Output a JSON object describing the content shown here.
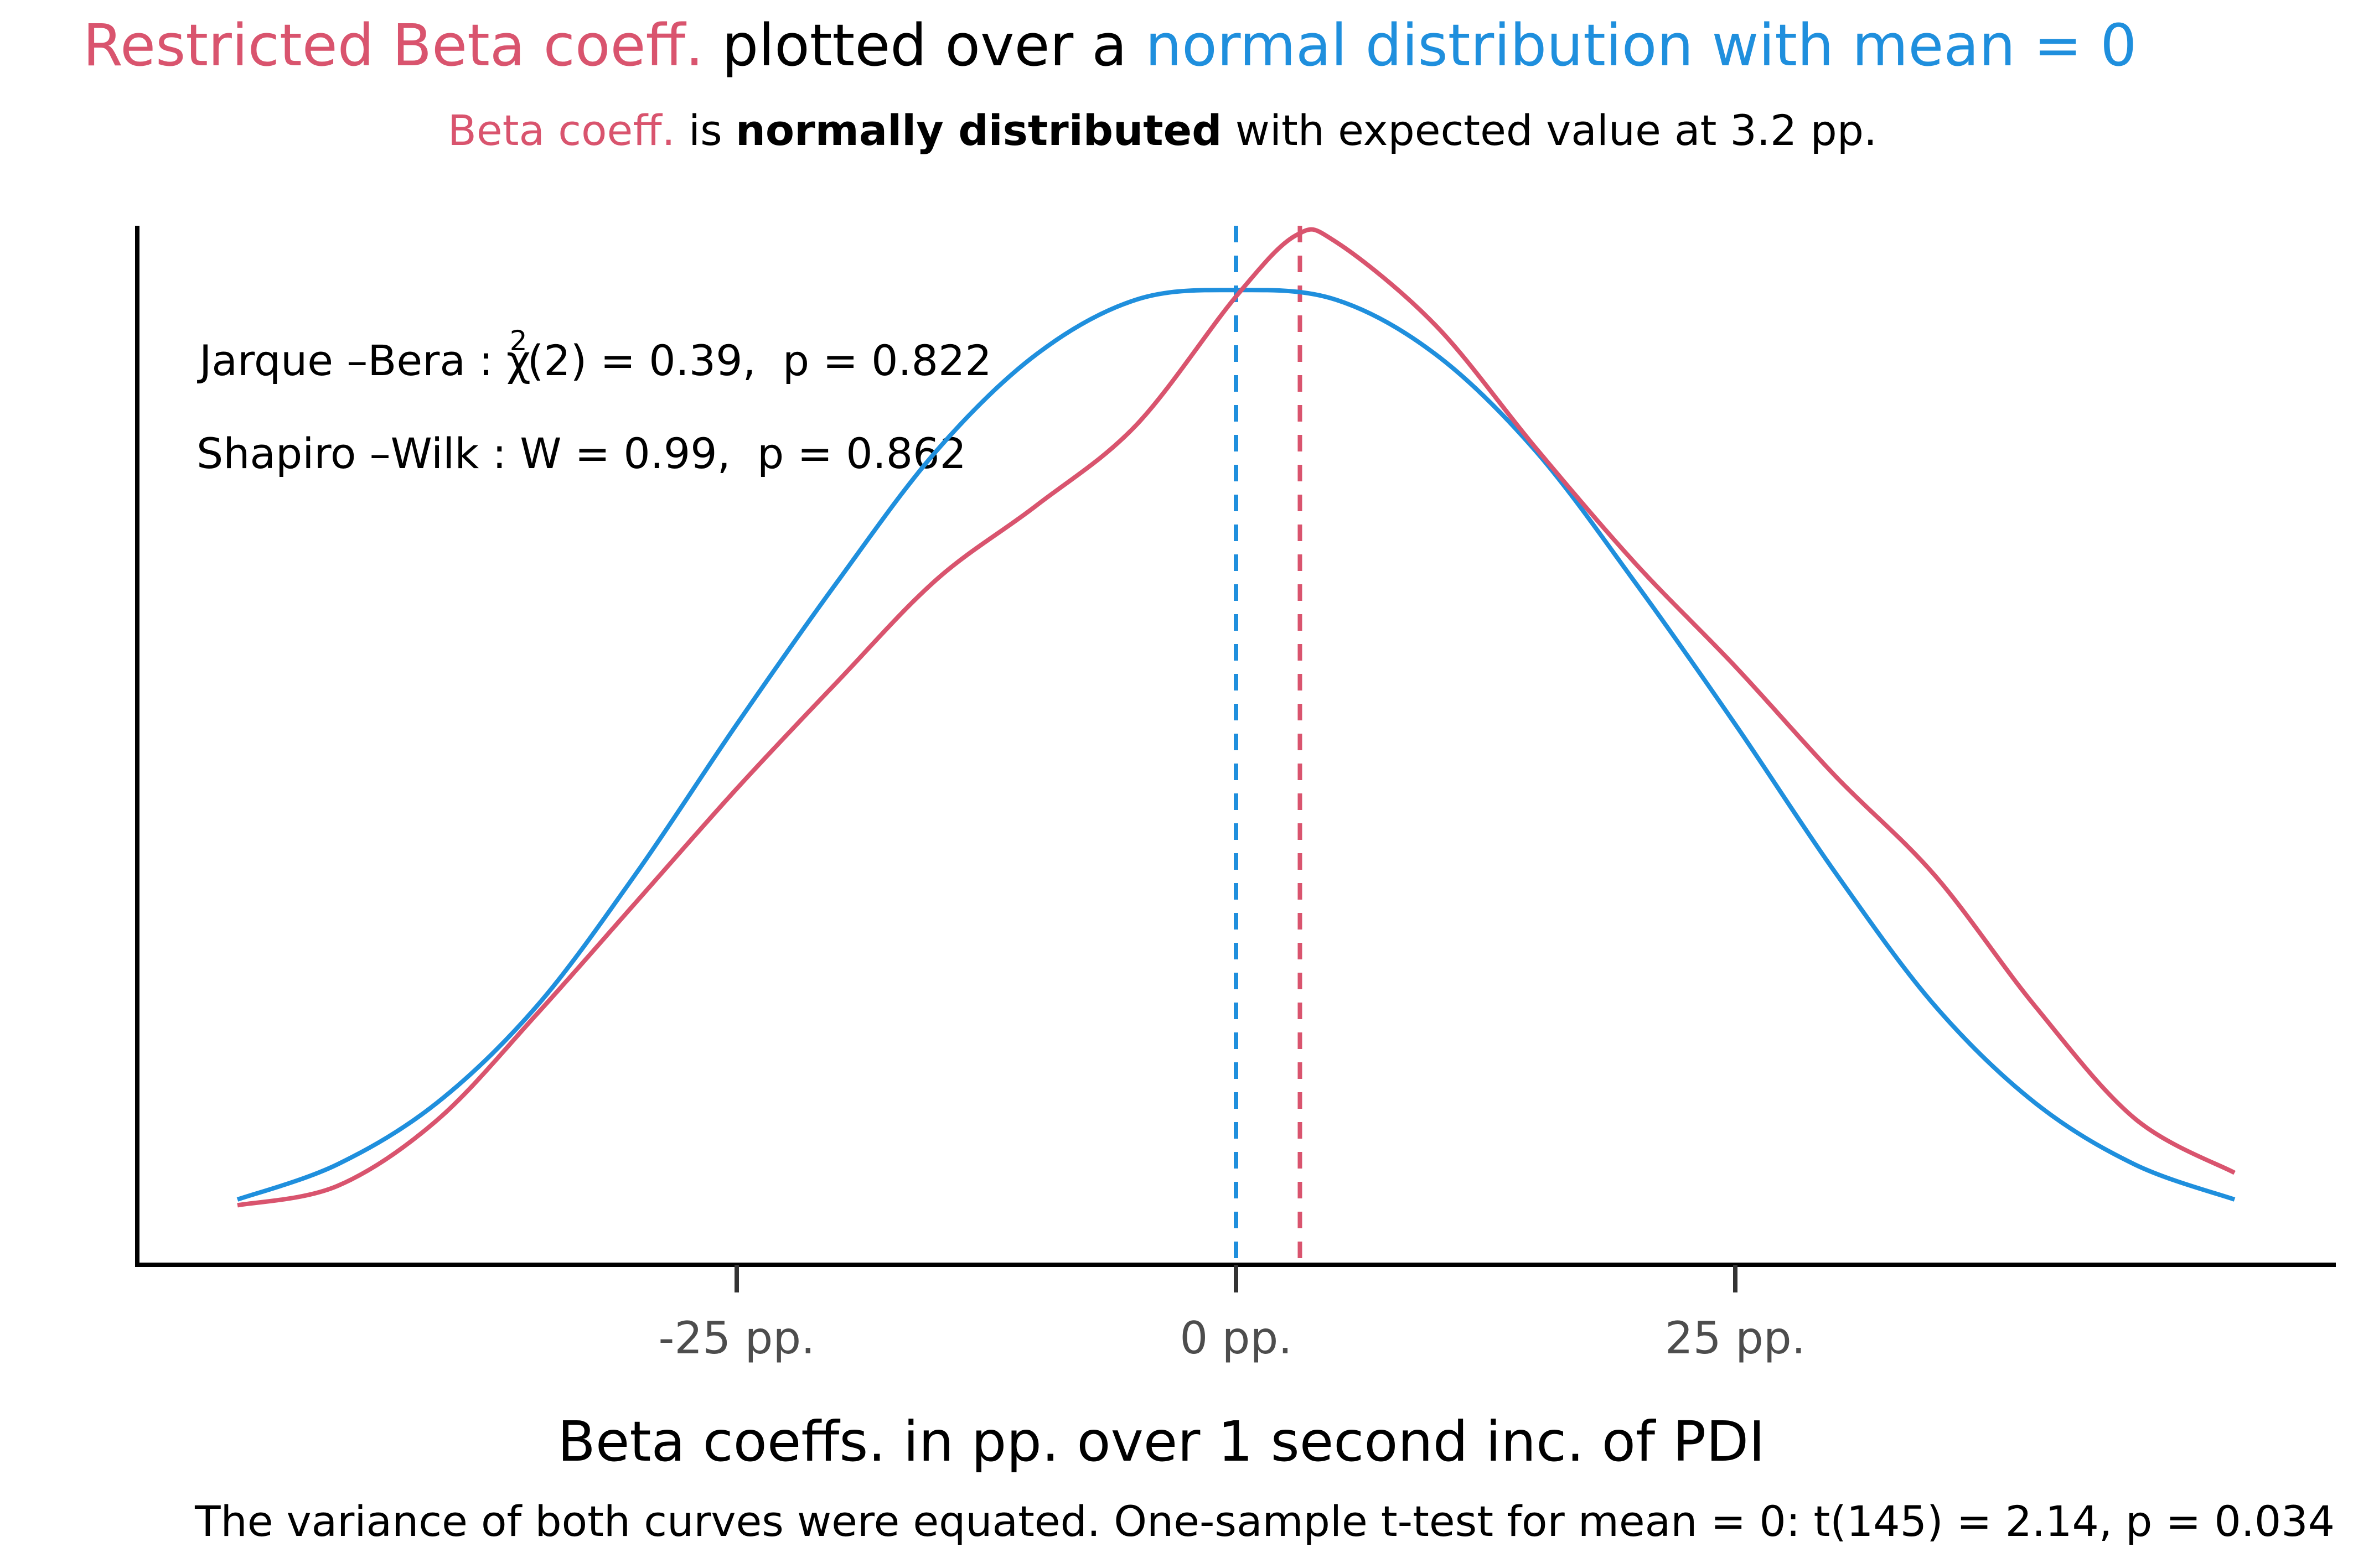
{
  "title": {
    "part1": "Restricted Beta coeff.",
    "part2": " plotted over a ",
    "part3": "normal distribution with mean = 0"
  },
  "subtitle": {
    "part1": "Beta coeff.",
    "part2": " is ",
    "part3": "normally distributed",
    "part4": " with expected value at 3.2 pp."
  },
  "annotations": {
    "jb_label": "Jarque –Bera : ",
    "jb_chi": "χ",
    "jb_sup": "2",
    "jb_rest": "(2) = 0.39,  p = 0.822",
    "sw": "Shapiro –Wilk : W = 0.99,  p = 0.862"
  },
  "caption": "The variance of both curves were equated. One-sample t-test for mean = 0: t(145) = 2.14, p = 0.034",
  "colors": {
    "beta": "#d9546e",
    "normal": "#1f8fdd",
    "axis": "#000000",
    "tick_text": "#4d4d4d"
  },
  "chart_data": {
    "type": "line",
    "xlabel": "Beta coeffs. in pp. over 1 second inc. of PDI",
    "ylabel": "",
    "xlim": [
      -55,
      55
    ],
    "ylim": [
      0,
      0.0323
    ],
    "x_ticks": [
      -25,
      0,
      25
    ],
    "x_tick_labels": [
      "-25 pp.",
      "0 pp.",
      "25 pp."
    ],
    "grid": false,
    "series": [
      {
        "key": "normal",
        "color": "#1f8fdd",
        "x": [
          -50,
          -45,
          -40,
          -35,
          -30,
          -25,
          -20,
          -15,
          -10,
          -5,
          0,
          5,
          10,
          15,
          20,
          25,
          30,
          35,
          40,
          45,
          50
        ],
        "y": [
          0.00203,
          0.00312,
          0.00504,
          0.00805,
          0.0122,
          0.0168,
          0.0212,
          0.0253,
          0.0283,
          0.03,
          0.0303,
          0.03,
          0.0283,
          0.0253,
          0.0212,
          0.0168,
          0.0122,
          0.00805,
          0.00504,
          0.00312,
          0.00203
        ]
      },
      {
        "key": "beta",
        "color": "#d9546e",
        "x": [
          -50,
          -45,
          -40,
          -35,
          -30,
          -25,
          -20,
          -15,
          -10,
          -5,
          0,
          3,
          5,
          10,
          15,
          20,
          25,
          30,
          35,
          40,
          45,
          50
        ],
        "y": [
          0.00185,
          0.00245,
          0.0045,
          0.0078,
          0.0113,
          0.0148,
          0.0181,
          0.0213,
          0.0236,
          0.0261,
          0.0301,
          0.032,
          0.0318,
          0.0292,
          0.0254,
          0.0218,
          0.0186,
          0.0152,
          0.0121,
          0.00805,
          0.00455,
          0.00286
        ]
      }
    ],
    "vlines": [
      {
        "x": 0,
        "color": "#1f8fdd",
        "style": "dashed"
      },
      {
        "x": 3.2,
        "color": "#d9546e",
        "style": "dashed"
      }
    ]
  }
}
